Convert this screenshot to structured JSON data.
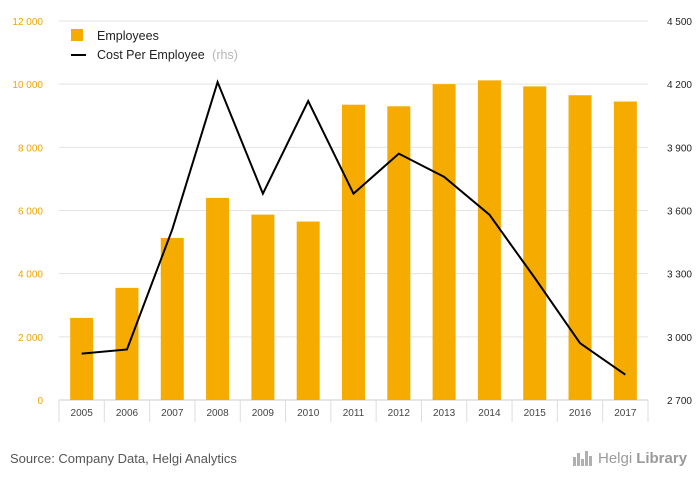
{
  "chart_data": {
    "type": "bar",
    "categories": [
      "2005",
      "2006",
      "2007",
      "2008",
      "2009",
      "2010",
      "2011",
      "2012",
      "2013",
      "2014",
      "2015",
      "2016",
      "2017"
    ],
    "series": [
      {
        "name": "Employees",
        "type": "bar",
        "axis": "left",
        "color": "#f5ab00",
        "values": [
          2600,
          3550,
          5130,
          6400,
          5870,
          5650,
          9350,
          9300,
          10000,
          10120,
          9930,
          9650,
          9450
        ]
      },
      {
        "name": "Cost Per Employee",
        "note": "(rhs)",
        "type": "line",
        "axis": "right",
        "color": "#000000",
        "values": [
          2920,
          2940,
          3510,
          4210,
          3680,
          4120,
          3680,
          3870,
          3760,
          3580,
          3280,
          2970,
          2820
        ]
      }
    ],
    "y_left": {
      "min": 0,
      "max": 12000,
      "ticks": [
        "0",
        "2 000",
        "4 000",
        "6 000",
        "8 000",
        "10 000",
        "12 000"
      ],
      "color": "#f0a500"
    },
    "y_right": {
      "min": 2700,
      "max": 4500,
      "ticks": [
        "2 700",
        "3 000",
        "3 300",
        "3 600",
        "3 900",
        "4 200",
        "4 500"
      ],
      "color": "#222222"
    },
    "grid": true,
    "legend_position": "top-left"
  },
  "footer": {
    "source": "Source: Company Data, Helgi Analytics",
    "brand_1": "Helgi",
    "brand_2": "Library"
  }
}
